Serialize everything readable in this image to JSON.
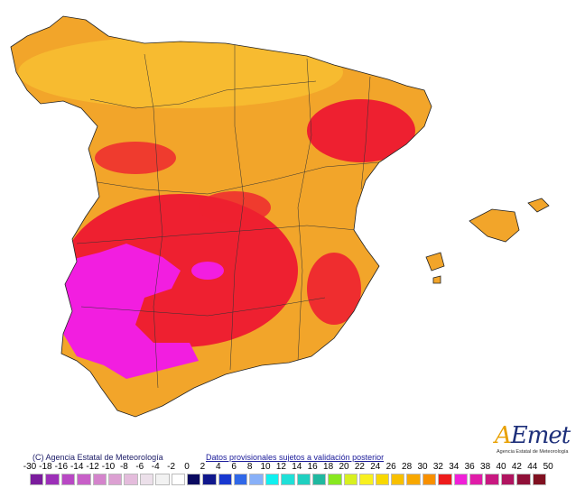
{
  "map": {
    "credit": "(C) Agencia Estatal de Meteorología",
    "disclaimer": "Datos provisionales sujetos a validación posterior",
    "logo": {
      "text": "AEmet",
      "subtitle": "Agencia Estatal de Meteorología"
    },
    "base_color": "#f2a52a",
    "hot_color": "#ee2030",
    "extreme_color": "#f21ee0"
  },
  "legend": {
    "labels": [
      "-30",
      "-18",
      "-16",
      "-14",
      "-12",
      "-10",
      "-8",
      "-6",
      "-4",
      "-2",
      "0",
      "2",
      "4",
      "6",
      "8",
      "10",
      "12",
      "14",
      "16",
      "18",
      "20",
      "22",
      "24",
      "26",
      "28",
      "30",
      "32",
      "34",
      "36",
      "38",
      "40",
      "42",
      "44",
      "50"
    ],
    "colors": [
      "#7a1c9c",
      "#9c30b8",
      "#b848c4",
      "#c860c8",
      "#d484cc",
      "#dca0d2",
      "#e4bcdc",
      "#ece0ea",
      "#f2f2f2",
      "#ffffff",
      "#0a0a60",
      "#10188c",
      "#1838d0",
      "#3068e8",
      "#88b0f8",
      "#10f0f0",
      "#20e0d8",
      "#20d0c0",
      "#20b8a0",
      "#88e820",
      "#d8f020",
      "#f8f020",
      "#f8d800",
      "#f8c000",
      "#f8a800",
      "#f89000",
      "#ee1c1c",
      "#f020d8",
      "#e01ca8",
      "#c81880",
      "#b01460",
      "#901038",
      "#801020"
    ]
  }
}
